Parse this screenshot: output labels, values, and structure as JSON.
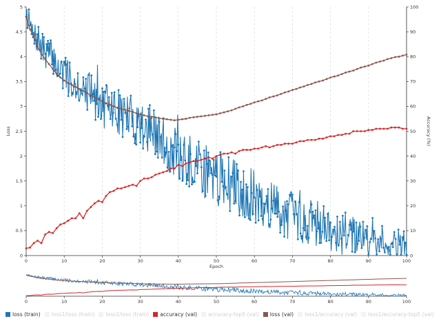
{
  "colors": {
    "loss_train": "#1f77b4",
    "accuracy_val": "#d62728",
    "loss_val": "#8c564b",
    "muted": "#d0d0d0"
  },
  "chart_data": [
    {
      "type": "line",
      "name": "main-chart",
      "xlabel": "Epoch",
      "ylabel": "Loss",
      "y2label": "Accuracy (%)",
      "xlim": [
        0,
        100
      ],
      "ylim": [
        0,
        5
      ],
      "y2lim": [
        0,
        100
      ],
      "x_ticks": [
        "0",
        "10",
        "20",
        "30",
        "40",
        "50",
        "60",
        "70",
        "80",
        "90",
        "100"
      ],
      "y_ticks": [
        "0",
        "0.5",
        "1",
        "1.5",
        "2",
        "2.5",
        "3",
        "3.5",
        "4",
        "4.5",
        "5"
      ],
      "y2_ticks": [
        "0",
        "10",
        "20",
        "30",
        "40",
        "50",
        "60",
        "70",
        "80",
        "90",
        "100"
      ],
      "series": [
        {
          "name": "loss (train)",
          "axis": "left",
          "style": "line-markers",
          "color_key": "loss_train",
          "x_start": 0,
          "x_end": 100,
          "values": [
            4.95,
            4.62,
            4.34,
            4.38,
            4.16,
            4.1,
            4.05,
            3.98,
            3.84,
            3.73,
            3.64,
            3.56,
            3.56,
            3.51,
            3.44,
            3.35,
            3.3,
            3.26,
            3.15,
            3.13,
            3.0,
            3.0,
            2.97,
            2.94,
            2.88,
            2.87,
            2.81,
            2.79,
            2.72,
            2.71,
            2.65,
            2.64,
            2.58,
            2.52,
            2.44,
            2.32,
            2.28,
            2.2,
            2.12,
            2.04,
            1.96,
            1.93,
            1.88,
            1.86,
            1.8,
            1.75,
            1.76,
            1.71,
            1.66,
            1.6,
            1.55,
            1.53,
            1.52,
            1.46,
            1.42,
            1.39,
            1.33,
            1.31,
            1.26,
            1.21,
            1.17,
            1.14,
            1.11,
            1.07,
            1.02,
            0.98,
            0.95,
            0.9,
            0.87,
            0.83,
            0.81,
            0.78,
            0.76,
            0.73,
            0.7,
            0.66,
            0.65,
            0.62,
            0.59,
            0.57,
            0.54,
            0.52,
            0.5,
            0.47,
            0.45,
            0.43,
            0.41,
            0.4,
            0.38,
            0.36,
            0.35,
            0.33,
            0.31,
            0.3,
            0.28,
            0.27,
            0.26,
            0.24,
            0.23,
            0.22,
            0.21
          ]
        },
        {
          "name": "accuracy (val)",
          "axis": "right",
          "style": "line-markers",
          "color_key": "accuracy_val",
          "x_start": 0,
          "x_end": 100,
          "values": [
            2.9,
            3.2,
            5.0,
            6.0,
            5.0,
            8.5,
            9.5,
            9.0,
            11.0,
            12.5,
            13.0,
            14.0,
            15.0,
            15.0,
            17.0,
            15.0,
            18.0,
            19.5,
            21.0,
            22.0,
            21.5,
            24.0,
            25.5,
            26.0,
            27.0,
            27.0,
            27.5,
            28.0,
            28.5,
            28.0,
            30.0,
            31.0,
            31.0,
            31.5,
            32.5,
            33.0,
            33.5,
            34.0,
            35.0,
            35.0,
            36.5,
            36.0,
            37.0,
            37.5,
            38.0,
            38.0,
            38.5,
            39.0,
            39.5,
            39.0,
            40.0,
            40.5,
            41.0,
            41.0,
            41.5,
            41.0,
            42.0,
            42.5,
            42.5,
            42.5,
            43.0,
            43.0,
            43.5,
            44.0,
            43.5,
            44.0,
            44.5,
            44.5,
            45.0,
            45.0,
            45.0,
            45.5,
            46.0,
            46.0,
            46.5,
            46.5,
            46.5,
            47.0,
            47.0,
            47.5,
            48.0,
            48.0,
            48.5,
            48.5,
            49.0,
            49.0,
            50.0,
            50.0,
            50.0,
            50.0,
            50.5,
            50.5,
            51.0,
            51.0,
            51.0,
            51.0,
            51.5,
            51.5,
            51.5,
            51.0,
            51.0
          ]
        },
        {
          "name": "loss (val)",
          "axis": "left",
          "style": "line-markers",
          "color_key": "loss_val",
          "x_start": 0,
          "x_end": 100,
          "values": [
            4.8,
            4.55,
            4.4,
            4.2,
            4.05,
            3.95,
            3.85,
            3.75,
            3.65,
            3.58,
            3.52,
            3.47,
            3.43,
            3.39,
            3.35,
            3.31,
            3.27,
            3.22,
            3.18,
            3.14,
            3.1,
            3.06,
            3.03,
            3.0,
            2.97,
            2.95,
            2.93,
            2.91,
            2.89,
            2.86,
            2.84,
            2.82,
            2.8,
            2.79,
            2.78,
            2.76,
            2.75,
            2.74,
            2.73,
            2.72,
            2.73,
            2.74,
            2.75,
            2.77,
            2.78,
            2.79,
            2.8,
            2.81,
            2.82,
            2.83,
            2.84,
            2.86,
            2.88,
            2.9,
            2.92,
            2.95,
            2.98,
            3.0,
            3.03,
            3.05,
            3.08,
            3.1,
            3.12,
            3.15,
            3.18,
            3.2,
            3.22,
            3.25,
            3.28,
            3.3,
            3.33,
            3.35,
            3.38,
            3.4,
            3.43,
            3.45,
            3.48,
            3.5,
            3.52,
            3.55,
            3.58,
            3.6,
            3.62,
            3.65,
            3.68,
            3.7,
            3.72,
            3.75,
            3.78,
            3.8,
            3.82,
            3.85,
            3.88,
            3.9,
            3.92,
            3.95,
            3.97,
            3.99,
            4.0,
            4.02,
            4.04
          ]
        }
      ]
    },
    {
      "type": "line",
      "name": "overview-chart",
      "xlim": [
        0,
        100
      ],
      "x_ticks": [
        "0",
        "10",
        "20",
        "30",
        "40",
        "50",
        "60",
        "70",
        "80",
        "90",
        "100"
      ]
    }
  ],
  "legend": [
    {
      "label": "loss (train)",
      "color_key": "loss_train",
      "active": true
    },
    {
      "label": "loss1/loss (train)",
      "color_key": "muted",
      "active": false
    },
    {
      "label": "loss2/loss (train)",
      "color_key": "muted",
      "active": false
    },
    {
      "label": "accuracy (val)",
      "color_key": "accuracy_val",
      "active": true
    },
    {
      "label": "accuracy-top5 (val)",
      "color_key": "muted",
      "active": false
    },
    {
      "label": "loss (val)",
      "color_key": "loss_val",
      "active": true
    },
    {
      "label": "loss1/accuracy (val)",
      "color_key": "muted",
      "active": false
    },
    {
      "label": "loss1/accuracy-top5 (val)",
      "color_key": "muted",
      "active": false
    }
  ]
}
